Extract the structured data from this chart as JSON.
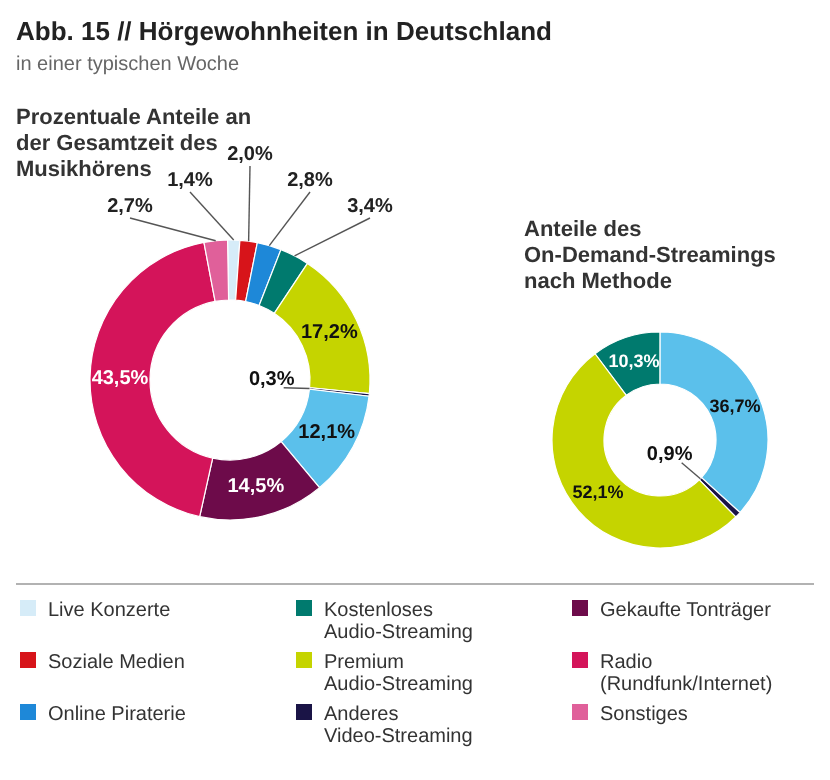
{
  "chart_data": [
    {
      "type": "donut",
      "title": "Abb. 15 // Hörgewohnheiten in Deutschland",
      "subtitle": "in einer typischen Woche",
      "annotations": [
        "Prozentuale Anteile an der Gesamtzeit des Musikhörens"
      ],
      "categories": [
        "Live Konzerte",
        "Soziale Medien",
        "Online Piraterie",
        "Kostenloses Audio-Streaming",
        "Premium Audio-Streaming",
        "Anderes Video-Streaming",
        null,
        "Gekaufte Tonträger",
        "Radio (Rundfunk/Internet)",
        "Sonstiges"
      ],
      "values": [
        1.4,
        2.0,
        2.8,
        3.4,
        17.2,
        0.3,
        12.1,
        14.5,
        43.5,
        2.7
      ],
      "value_labels": [
        "1,4%",
        "2,0%",
        "2,8%",
        "3,4%",
        "17,2%",
        "0,3%",
        "12,1%",
        "14,5%",
        "43,5%",
        "2,7%"
      ],
      "colors": [
        "#d6ecf8",
        "#d7141a",
        "#1e88d8",
        "#007a6e",
        "#c5d400",
        "#1a1446",
        "#5bc0eb",
        "#6d0b4a",
        "#d4145a",
        "#e0609a"
      ],
      "legend": "bottom"
    },
    {
      "type": "donut",
      "title": "Anteile des On-Demand-Streamings nach Methode",
      "categories": [
        null,
        null,
        null,
        null
      ],
      "values": [
        10.3,
        36.7,
        0.9,
        52.1
      ],
      "value_labels": [
        "10,3%",
        "36,7%",
        "0,9%",
        "52,1%"
      ],
      "colors": [
        "#007a6e",
        "#5bc0eb",
        "#1a1446",
        "#c5d400"
      ]
    }
  ]
}
